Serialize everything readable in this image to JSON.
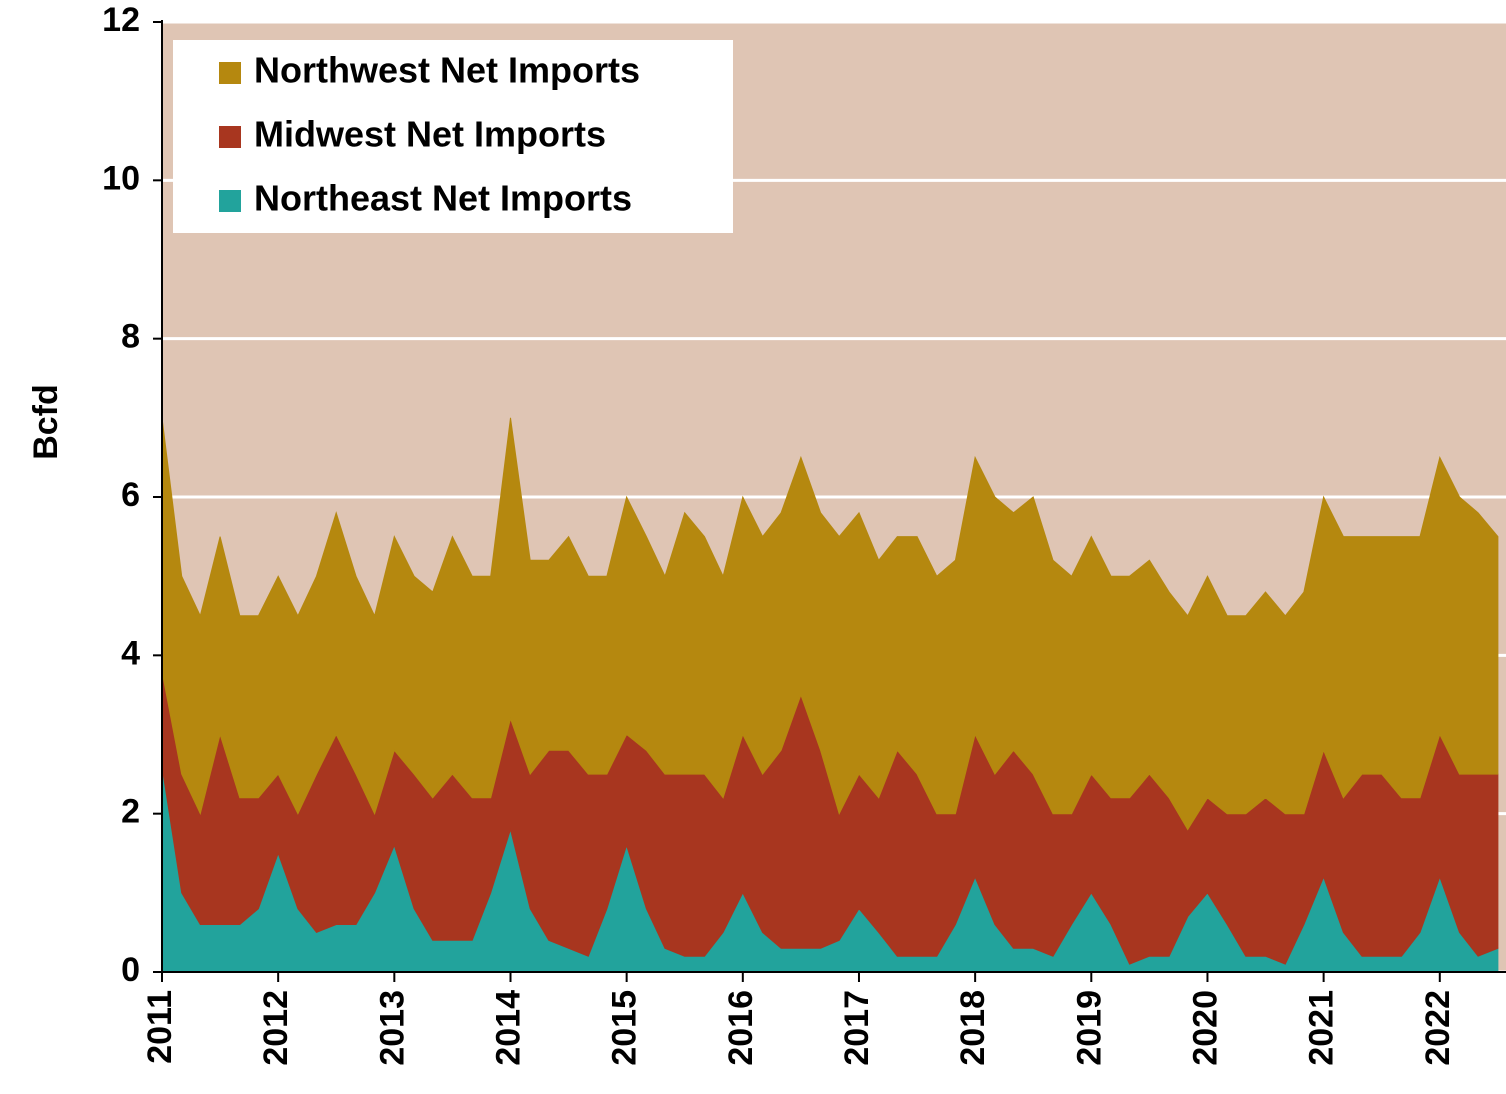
{
  "chart_data": {
    "type": "stacked-area",
    "y_label": "Bcfd",
    "x": [
      2011,
      2011.17,
      2011.33,
      2011.5,
      2011.67,
      2011.83,
      2012,
      2012.17,
      2012.33,
      2012.5,
      2012.67,
      2012.83,
      2013,
      2013.17,
      2013.33,
      2013.5,
      2013.67,
      2013.83,
      2014,
      2014.17,
      2014.33,
      2014.5,
      2014.67,
      2014.83,
      2015,
      2015.17,
      2015.33,
      2015.5,
      2015.67,
      2015.83,
      2016,
      2016.17,
      2016.33,
      2016.5,
      2016.67,
      2016.83,
      2017,
      2017.17,
      2017.33,
      2017.5,
      2017.67,
      2017.83,
      2018,
      2018.17,
      2018.33,
      2018.5,
      2018.67,
      2018.83,
      2019,
      2019.17,
      2019.33,
      2019.5,
      2019.67,
      2019.83,
      2020,
      2020.17,
      2020.33,
      2020.5,
      2020.67,
      2020.83,
      2021,
      2021.17,
      2021.33,
      2021.5,
      2021.67,
      2021.83,
      2022,
      2022.17,
      2022.33,
      2022.5
    ],
    "series": [
      {
        "name": "Northeast Net Imports",
        "color": "#22a39c",
        "values": [
          2.6,
          1.0,
          0.6,
          0.6,
          0.6,
          0.8,
          1.5,
          0.8,
          0.5,
          0.6,
          0.6,
          1.0,
          1.6,
          0.8,
          0.4,
          0.4,
          0.4,
          1.0,
          1.8,
          0.8,
          0.4,
          0.3,
          0.2,
          0.8,
          1.6,
          0.8,
          0.3,
          0.2,
          0.2,
          0.5,
          1.0,
          0.5,
          0.3,
          0.3,
          0.3,
          0.4,
          0.8,
          0.5,
          0.2,
          0.2,
          0.2,
          0.6,
          1.2,
          0.6,
          0.3,
          0.3,
          0.2,
          0.6,
          1.0,
          0.6,
          0.1,
          0.2,
          0.2,
          0.7,
          1.0,
          0.6,
          0.2,
          0.2,
          0.1,
          0.6,
          1.2,
          0.5,
          0.2,
          0.2,
          0.2,
          0.5,
          1.2,
          0.5,
          0.2,
          0.3
        ]
      },
      {
        "name": "Midwest Net Imports",
        "color": "#a8361f",
        "values": [
          1.2,
          1.5,
          1.4,
          2.4,
          1.6,
          1.4,
          1.0,
          1.2,
          2.0,
          2.4,
          1.9,
          1.0,
          1.2,
          1.7,
          1.8,
          2.1,
          1.8,
          1.2,
          1.4,
          1.7,
          2.4,
          2.5,
          2.3,
          1.7,
          1.4,
          2.0,
          2.2,
          2.3,
          2.3,
          1.7,
          2.0,
          2.0,
          2.5,
          3.2,
          2.5,
          1.6,
          1.7,
          1.7,
          2.6,
          2.3,
          1.8,
          1.4,
          1.8,
          1.9,
          2.5,
          2.2,
          1.8,
          1.4,
          1.5,
          1.6,
          2.1,
          2.3,
          2.0,
          1.1,
          1.2,
          1.4,
          1.8,
          2.0,
          1.9,
          1.4,
          1.6,
          1.7,
          2.3,
          2.3,
          2.0,
          1.7,
          1.8,
          2.0,
          2.3,
          2.2
        ]
      },
      {
        "name": "Northwest Net Imports",
        "color": "#b5880f",
        "values": [
          3.2,
          2.5,
          2.5,
          2.5,
          2.3,
          2.3,
          2.5,
          2.5,
          2.5,
          2.8,
          2.5,
          2.5,
          2.7,
          2.5,
          2.6,
          3.0,
          2.8,
          2.8,
          3.8,
          2.7,
          2.4,
          2.7,
          2.5,
          2.5,
          3.0,
          2.7,
          2.5,
          3.3,
          3.0,
          2.8,
          3.0,
          3.0,
          3.0,
          3.0,
          3.0,
          3.5,
          3.3,
          3.0,
          2.7,
          3.0,
          3.0,
          3.2,
          3.5,
          3.5,
          3.0,
          3.5,
          3.2,
          3.0,
          3.0,
          2.8,
          2.8,
          2.7,
          2.6,
          2.7,
          2.8,
          2.5,
          2.5,
          2.6,
          2.5,
          2.8,
          3.2,
          3.3,
          3.0,
          3.0,
          3.3,
          3.3,
          3.5,
          3.5,
          3.3,
          3.0
        ]
      }
    ],
    "xlim": [
      2011,
      2022.57
    ],
    "xticks": [
      2011,
      2012,
      2013,
      2014,
      2015,
      2016,
      2017,
      2018,
      2019,
      2020,
      2021,
      2022
    ],
    "ylim": [
      0,
      12
    ],
    "yticks": [
      0,
      2,
      4,
      6,
      8,
      10,
      12
    ],
    "grid": true,
    "legend": "upper-left",
    "background": "#dfc5b4"
  }
}
